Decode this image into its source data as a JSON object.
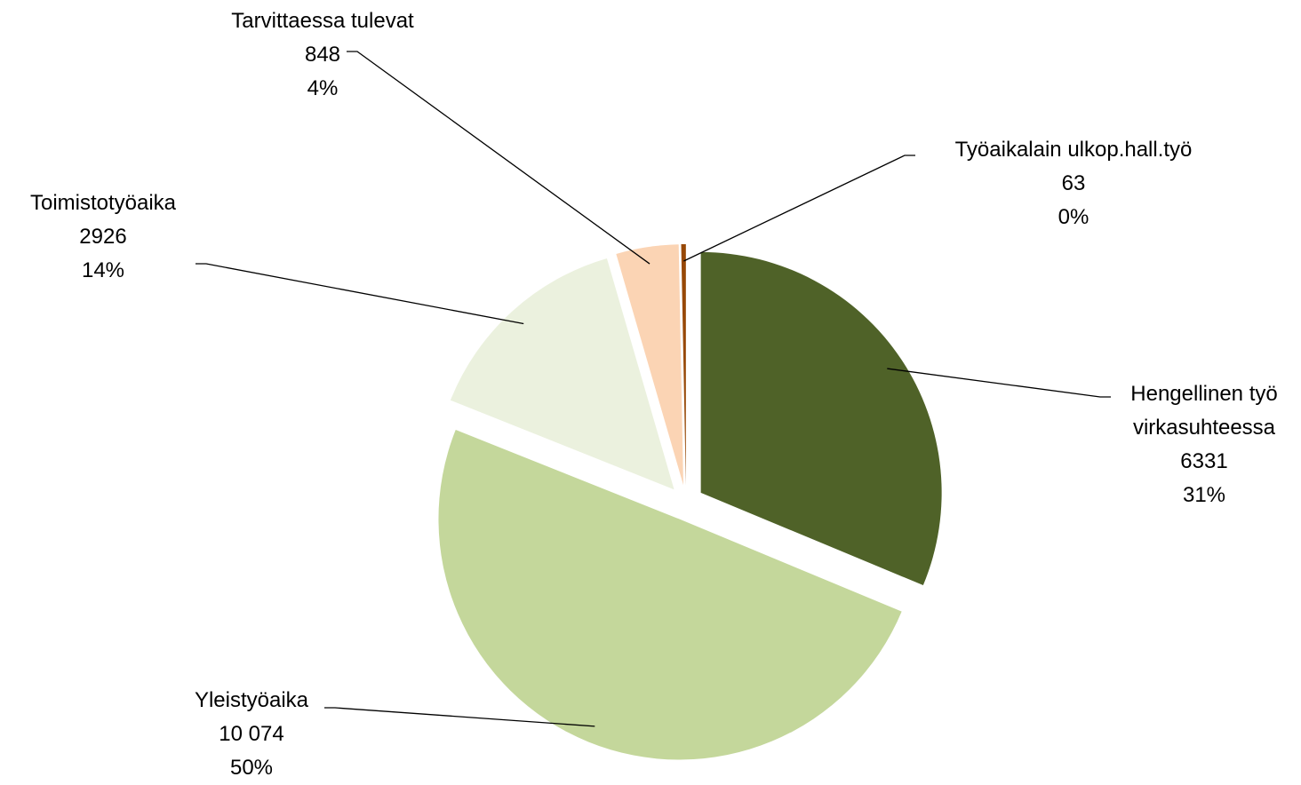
{
  "chart_data": {
    "type": "pie",
    "categories": [
      "Hengellinen työ virkasuhteessa",
      "Yleistyöaika",
      "Toimistotyöaika",
      "Tarvittaessa tulevat",
      "Työaikalain ulkop.hall.työ"
    ],
    "values": [
      6331,
      10074,
      2926,
      848,
      63
    ],
    "value_labels": [
      "6331",
      "10 074",
      "2926",
      "848",
      "63"
    ],
    "percent_labels": [
      "31%",
      "50%",
      "14%",
      "4%",
      "0%"
    ],
    "colors": [
      "#4f6228",
      "#c4d79b",
      "#ebf1de",
      "#fbd4b4",
      "#974806"
    ]
  }
}
